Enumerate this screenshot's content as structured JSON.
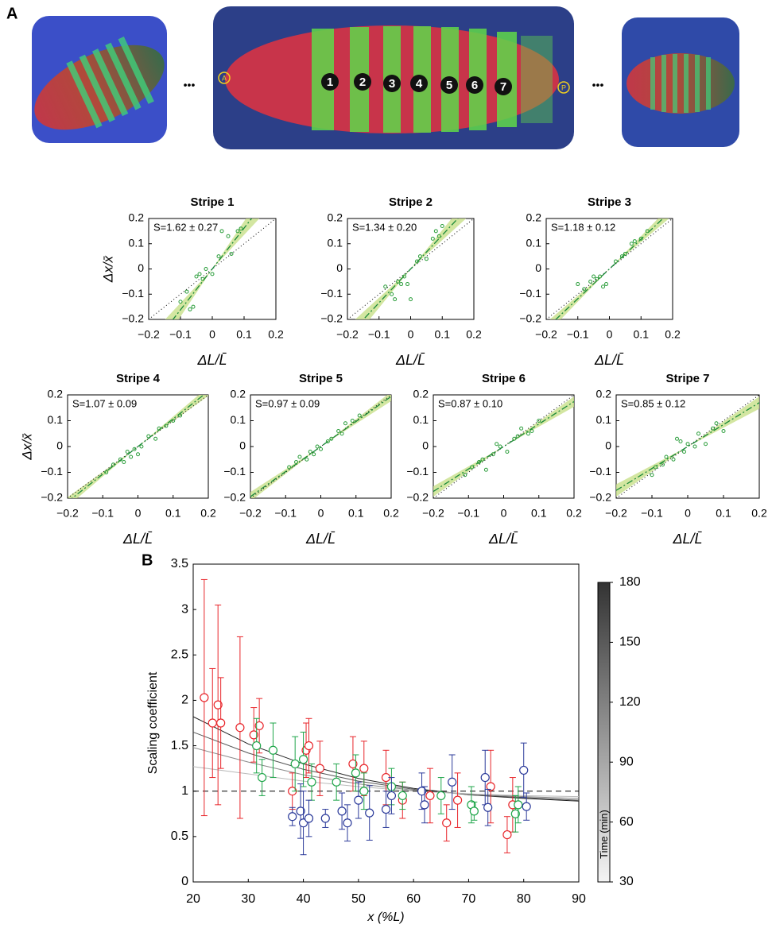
{
  "figure": {
    "panel_a": "A",
    "panel_b": "B",
    "stripe_numbers": [
      "1",
      "2",
      "3",
      "4",
      "5",
      "6",
      "7"
    ],
    "anterior": "A",
    "posterior": "P",
    "ellipsis": "•••"
  },
  "chart_data": [
    {
      "type": "scatter",
      "title": "Stripe 1",
      "annotation": "S=1.62 ± 0.27",
      "xlabel": "ΔL/L̄",
      "ylabel": "Δx/x̄",
      "color": "#2a9d3a",
      "fit_slope": 1.62,
      "fit_error": 0.27,
      "x": [
        -0.1,
        -0.08,
        -0.07,
        -0.06,
        -0.05,
        -0.04,
        -0.03,
        -0.02,
        0,
        0.02,
        0.03,
        0.05,
        0.06,
        0.08,
        0.09
      ],
      "values": [
        -0.13,
        -0.09,
        -0.16,
        -0.15,
        -0.03,
        -0.02,
        -0.04,
        0,
        -0.02,
        0.05,
        0.15,
        0.13,
        0.06,
        0.15,
        0.16
      ],
      "xlim": [
        -0.2,
        0.2
      ],
      "ylim": [
        -0.2,
        0.2
      ],
      "xticks": [
        {
          "value": -0.2,
          "label": "−0.2"
        },
        {
          "value": -0.1,
          "label": "−0.1"
        },
        0,
        0.1,
        0.2
      ],
      "yticks": [
        {
          "value": -0.2,
          "label": "−0.2"
        },
        {
          "value": -0.1,
          "label": "−0.1"
        },
        0,
        0.1,
        0.2
      ]
    },
    {
      "type": "scatter",
      "title": "Stripe 2",
      "annotation": "S=1.34 ± 0.20",
      "xlabel": "ΔL/L̄",
      "color": "#2a9d3a",
      "fit_slope": 1.34,
      "fit_error": 0.2,
      "x": [
        -0.08,
        -0.06,
        -0.05,
        -0.04,
        -0.03,
        -0.02,
        -0.01,
        0,
        0.02,
        0.03,
        0.05,
        0.07,
        0.08,
        0.09,
        0.1
      ],
      "values": [
        -0.07,
        -0.1,
        -0.12,
        -0.05,
        -0.06,
        -0.03,
        -0.06,
        -0.12,
        0.03,
        0.05,
        0.04,
        0.12,
        0.15,
        0.13,
        0.17
      ],
      "xlim": [
        -0.2,
        0.2
      ],
      "ylim": [
        -0.2,
        0.2
      ],
      "xticks": [
        {
          "value": -0.2,
          "label": "−0.2"
        },
        {
          "value": -0.1,
          "label": "−0.1"
        },
        0,
        0.1,
        0.2
      ],
      "yticks": [
        {
          "value": -0.2,
          "label": "−0.2"
        },
        {
          "value": -0.1,
          "label": "−0.1"
        },
        0,
        0.1,
        0.2
      ]
    },
    {
      "type": "scatter",
      "title": "Stripe 3",
      "annotation": "S=1.18 ± 0.12",
      "xlabel": "ΔL/L̄",
      "color": "#2a9d3a",
      "fit_slope": 1.18,
      "fit_error": 0.12,
      "x": [
        -0.1,
        -0.08,
        -0.06,
        -0.05,
        -0.04,
        -0.03,
        -0.02,
        -0.01,
        0.02,
        0.04,
        0.05,
        0.07,
        0.08,
        0.1,
        0.12
      ],
      "values": [
        -0.06,
        -0.08,
        -0.05,
        -0.03,
        -0.04,
        -0.03,
        -0.07,
        -0.06,
        0.03,
        0.05,
        0.06,
        0.1,
        0.11,
        0.12,
        0.15
      ],
      "xlim": [
        -0.2,
        0.2
      ],
      "ylim": [
        -0.2,
        0.2
      ],
      "xticks": [
        {
          "value": -0.2,
          "label": "−0.2"
        },
        {
          "value": -0.1,
          "label": "−0.1"
        },
        0,
        0.1,
        0.2
      ],
      "yticks": [
        {
          "value": -0.2,
          "label": "−0.2"
        },
        {
          "value": -0.1,
          "label": "−0.1"
        },
        0,
        0.1,
        0.2
      ]
    },
    {
      "type": "scatter",
      "title": "Stripe 4",
      "annotation": "S=1.07 ± 0.09",
      "xlabel": "ΔL/L̄",
      "ylabel": "Δx/x̄",
      "color": "#2a9d3a",
      "fit_slope": 1.07,
      "fit_error": 0.09,
      "x": [
        -0.09,
        -0.07,
        -0.05,
        -0.04,
        -0.03,
        -0.02,
        -0.01,
        0,
        0.01,
        0.03,
        0.05,
        0.06,
        0.08,
        0.1,
        0.12
      ],
      "values": [
        -0.1,
        -0.07,
        -0.05,
        -0.06,
        -0.02,
        -0.04,
        -0.01,
        -0.03,
        0,
        0.04,
        0.03,
        0.07,
        0.08,
        0.1,
        0.12
      ],
      "xlim": [
        -0.2,
        0.2
      ],
      "ylim": [
        -0.2,
        0.2
      ],
      "xticks": [
        {
          "value": -0.2,
          "label": "−0.2"
        },
        {
          "value": -0.1,
          "label": "−0.1"
        },
        0,
        0.1,
        0.2
      ],
      "yticks": [
        {
          "value": -0.2,
          "label": "−0.2"
        },
        {
          "value": -0.1,
          "label": "−0.1"
        },
        0,
        0.1,
        0.2
      ]
    },
    {
      "type": "scatter",
      "title": "Stripe 5",
      "annotation": "S=0.97 ± 0.09",
      "xlabel": "ΔL/L̄",
      "color": "#2a9d3a",
      "fit_slope": 0.97,
      "fit_error": 0.09,
      "x": [
        -0.09,
        -0.07,
        -0.06,
        -0.04,
        -0.03,
        -0.02,
        -0.01,
        0,
        0.02,
        0.03,
        0.05,
        0.06,
        0.07,
        0.09,
        0.11
      ],
      "values": [
        -0.08,
        -0.06,
        -0.04,
        -0.05,
        -0.02,
        -0.03,
        0,
        -0.01,
        0.02,
        0.03,
        0.06,
        0.05,
        0.09,
        0.1,
        0.12
      ],
      "xlim": [
        -0.2,
        0.2
      ],
      "ylim": [
        -0.2,
        0.2
      ],
      "xticks": [
        {
          "value": -0.2,
          "label": "−0.2"
        },
        {
          "value": -0.1,
          "label": "−0.1"
        },
        0,
        0.1,
        0.2
      ],
      "yticks": [
        {
          "value": -0.2,
          "label": "−0.2"
        },
        {
          "value": -0.1,
          "label": "−0.1"
        },
        0,
        0.1,
        0.2
      ]
    },
    {
      "type": "scatter",
      "title": "Stripe 6",
      "annotation": "S=0.87 ± 0.10",
      "xlabel": "ΔL/L̄",
      "color": "#2a9d3a",
      "fit_slope": 0.87,
      "fit_error": 0.1,
      "x": [
        -0.11,
        -0.09,
        -0.07,
        -0.06,
        -0.05,
        -0.03,
        -0.02,
        -0.01,
        0.01,
        0.03,
        0.04,
        0.05,
        0.07,
        0.08,
        0.1
      ],
      "values": [
        -0.11,
        -0.08,
        -0.06,
        -0.05,
        -0.09,
        -0.03,
        0.01,
        0,
        -0.02,
        0.03,
        0.04,
        0.07,
        0.05,
        0.06,
        0.1
      ],
      "xlim": [
        -0.2,
        0.2
      ],
      "ylim": [
        -0.2,
        0.2
      ],
      "xticks": [
        {
          "value": -0.2,
          "label": "−0.2"
        },
        {
          "value": -0.1,
          "label": "−0.1"
        },
        0,
        0.1,
        0.2
      ],
      "yticks": [
        {
          "value": -0.2,
          "label": "−0.2"
        },
        {
          "value": -0.1,
          "label": "−0.1"
        },
        0,
        0.1,
        0.2
      ]
    },
    {
      "type": "scatter",
      "title": "Stripe 7",
      "annotation": "S=0.85 ± 0.12",
      "xlabel": "ΔL/L̄",
      "color": "#2a9d3a",
      "fit_slope": 0.85,
      "fit_error": 0.12,
      "x": [
        -0.1,
        -0.09,
        -0.07,
        -0.06,
        -0.04,
        -0.03,
        -0.02,
        -0.01,
        0,
        0.02,
        0.03,
        0.05,
        0.07,
        0.08,
        0.1
      ],
      "values": [
        -0.11,
        -0.08,
        -0.07,
        -0.04,
        -0.05,
        0.03,
        0.02,
        -0.02,
        0.01,
        0,
        0.05,
        0.01,
        0.07,
        0.09,
        0.06
      ],
      "xlim": [
        -0.2,
        0.2
      ],
      "ylim": [
        -0.2,
        0.2
      ],
      "xticks": [
        {
          "value": -0.2,
          "label": "−0.2"
        },
        {
          "value": -0.1,
          "label": "−0.1"
        },
        0,
        0.1,
        0.2
      ],
      "yticks": [
        {
          "value": -0.2,
          "label": "−0.2"
        },
        {
          "value": -0.1,
          "label": "−0.1"
        },
        0,
        0.1,
        0.2
      ]
    },
    {
      "type": "errorbar",
      "xlabel": "x (%L)",
      "ylabel": "Scaling coefficient",
      "xlim": [
        20,
        90
      ],
      "ylim": [
        0,
        3.5
      ],
      "xticks": [
        20,
        30,
        40,
        50,
        60,
        70,
        80,
        90
      ],
      "yticks": [
        0,
        0.5,
        1,
        1.5,
        2,
        2.5,
        3,
        3.5
      ],
      "reference_line": 1,
      "series": [
        {
          "color": "#e8252a",
          "x": [
            22,
            23.5,
            24.5,
            25,
            28.5,
            31,
            32,
            38,
            40.5,
            41,
            43,
            49,
            51,
            55,
            58,
            63,
            66,
            68,
            74,
            77,
            78
          ],
          "values": [
            2.03,
            1.75,
            1.95,
            1.75,
            1.7,
            1.62,
            1.72,
            1.0,
            1.45,
            1.5,
            1.25,
            1.3,
            1.25,
            1.15,
            0.9,
            0.95,
            0.65,
            0.9,
            1.05,
            0.52,
            0.85
          ],
          "errors": [
            1.3,
            0.6,
            1.1,
            0.5,
            1.0,
            0.3,
            0.3,
            0.2,
            0.3,
            0.3,
            0.3,
            0.3,
            0.3,
            0.3,
            0.2,
            0.3,
            0.2,
            0.3,
            0.4,
            0.2,
            0.3
          ]
        },
        {
          "color": "#1fa64a",
          "x": [
            31.5,
            32.5,
            34.5,
            38.5,
            40,
            41.5,
            46,
            49.5,
            51,
            56,
            58,
            65,
            70.5,
            71,
            78.5,
            79
          ],
          "values": [
            1.5,
            1.15,
            1.45,
            1.3,
            1.35,
            1.1,
            1.1,
            1.2,
            1.0,
            1.05,
            0.95,
            0.95,
            0.85,
            0.78,
            0.75,
            0.85
          ],
          "errors": [
            0.3,
            0.2,
            0.3,
            0.3,
            0.3,
            0.2,
            0.2,
            0.2,
            0.2,
            0.2,
            0.15,
            0.2,
            0.2,
            0.1,
            0.2,
            0.2
          ]
        },
        {
          "color": "#2b3a9a",
          "x": [
            38,
            39.5,
            40,
            41,
            44,
            47,
            48,
            50,
            52,
            55,
            56,
            61.5,
            62,
            67,
            73,
            73.5,
            80,
            80.5
          ],
          "values": [
            0.72,
            0.78,
            0.65,
            0.7,
            0.7,
            0.78,
            0.65,
            0.9,
            0.76,
            0.8,
            0.95,
            1.0,
            0.85,
            1.1,
            1.15,
            0.82,
            1.23,
            0.83
          ],
          "errors": [
            0.1,
            0.3,
            0.35,
            0.2,
            0.1,
            0.2,
            0.2,
            0.2,
            0.3,
            0.2,
            0.2,
            0.2,
            0.2,
            0.3,
            0.3,
            0.2,
            0.3,
            0.15
          ]
        }
      ],
      "curves": [
        {
          "color": "#222222",
          "x": [
            20,
            30,
            40,
            50,
            60,
            70,
            80,
            90
          ],
          "values": [
            1.82,
            1.52,
            1.3,
            1.14,
            1.03,
            0.96,
            0.92,
            0.89
          ]
        },
        {
          "color": "#555555",
          "x": [
            20,
            30,
            40,
            50,
            60,
            70,
            80,
            90
          ],
          "values": [
            1.65,
            1.42,
            1.24,
            1.11,
            1.02,
            0.96,
            0.93,
            0.9
          ]
        },
        {
          "color": "#888888",
          "x": [
            20,
            30,
            40,
            50,
            60,
            70,
            80,
            90
          ],
          "values": [
            1.48,
            1.32,
            1.18,
            1.08,
            1.01,
            0.97,
            0.94,
            0.92
          ]
        },
        {
          "color": "#bbbbbb",
          "x": [
            20,
            30,
            40,
            50,
            60,
            70,
            80,
            90
          ],
          "values": [
            1.27,
            1.19,
            1.11,
            1.05,
            1.0,
            0.97,
            0.95,
            0.94
          ]
        }
      ],
      "colorbar": {
        "label": "Time (min)",
        "lim": [
          30,
          180
        ],
        "ticks": [
          30,
          60,
          90,
          120,
          150,
          180
        ]
      }
    }
  ]
}
